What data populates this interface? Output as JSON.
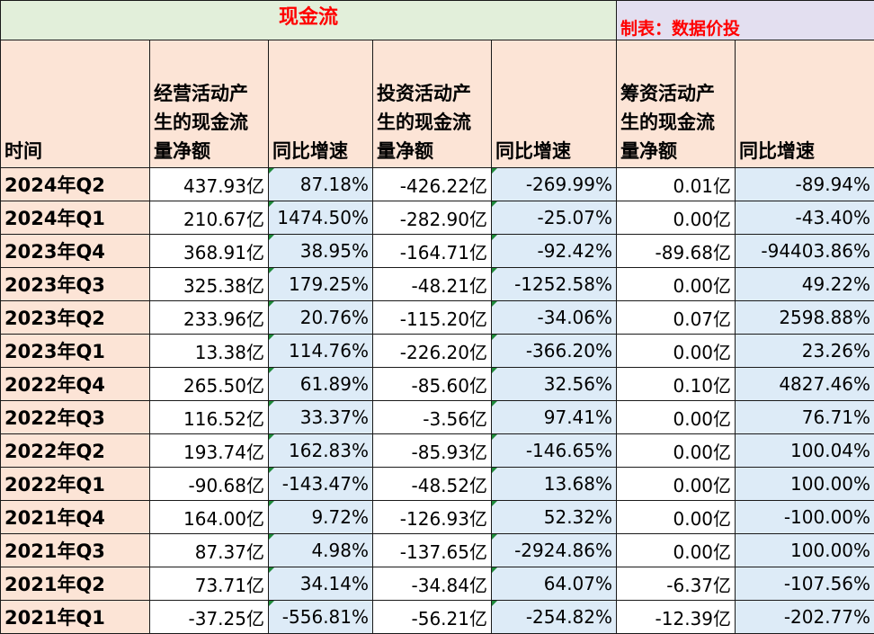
{
  "title": "现金流",
  "credit": "制表：数据价投",
  "headers": {
    "period": "时间",
    "operating": "经营活动产生的现金流量净额",
    "operating_yoy": "同比增速",
    "investing": "投资活动产生的现金流量净额",
    "investing_yoy": "同比增速",
    "financing": "筹资活动产生的现金流量净额",
    "financing_yoy": "同比增速"
  },
  "rows": [
    {
      "period": "2024年Q2",
      "op": "437.93亿",
      "op_yoy": "87.18%",
      "inv": "-426.22亿",
      "inv_yoy": "-269.99%",
      "fin": "0.01亿",
      "fin_yoy": "-89.94%"
    },
    {
      "period": "2024年Q1",
      "op": "210.67亿",
      "op_yoy": "1474.50%",
      "inv": "-282.90亿",
      "inv_yoy": "-25.07%",
      "fin": "0.00亿",
      "fin_yoy": "-43.40%"
    },
    {
      "period": "2023年Q4",
      "op": "368.91亿",
      "op_yoy": "38.95%",
      "inv": "-164.71亿",
      "inv_yoy": "-92.42%",
      "fin": "-89.68亿",
      "fin_yoy": "-94403.86%"
    },
    {
      "period": "2023年Q3",
      "op": "325.38亿",
      "op_yoy": "179.25%",
      "inv": "-48.21亿",
      "inv_yoy": "-1252.58%",
      "fin": "0.00亿",
      "fin_yoy": "49.22%"
    },
    {
      "period": "2023年Q2",
      "op": "233.96亿",
      "op_yoy": "20.76%",
      "inv": "-115.20亿",
      "inv_yoy": "-34.06%",
      "fin": "0.07亿",
      "fin_yoy": "2598.88%"
    },
    {
      "period": "2023年Q1",
      "op": "13.38亿",
      "op_yoy": "114.76%",
      "inv": "-226.20亿",
      "inv_yoy": "-366.20%",
      "fin": "0.00亿",
      "fin_yoy": "23.26%"
    },
    {
      "period": "2022年Q4",
      "op": "265.50亿",
      "op_yoy": "61.89%",
      "inv": "-85.60亿",
      "inv_yoy": "32.56%",
      "fin": "0.10亿",
      "fin_yoy": "4827.46%"
    },
    {
      "period": "2022年Q3",
      "op": "116.52亿",
      "op_yoy": "33.37%",
      "inv": "-3.56亿",
      "inv_yoy": "97.41%",
      "fin": "0.00亿",
      "fin_yoy": "76.71%"
    },
    {
      "period": "2022年Q2",
      "op": "193.74亿",
      "op_yoy": "162.83%",
      "inv": "-85.93亿",
      "inv_yoy": "-146.65%",
      "fin": "0.00亿",
      "fin_yoy": "100.04%"
    },
    {
      "period": "2022年Q1",
      "op": "-90.68亿",
      "op_yoy": "-143.47%",
      "inv": "-48.52亿",
      "inv_yoy": "13.68%",
      "fin": "0.00亿",
      "fin_yoy": "100.00%"
    },
    {
      "period": "2021年Q4",
      "op": "164.00亿",
      "op_yoy": "9.72%",
      "inv": "-126.93亿",
      "inv_yoy": "52.32%",
      "fin": "0.00亿",
      "fin_yoy": "-100.00%"
    },
    {
      "period": "2021年Q3",
      "op": "87.37亿",
      "op_yoy": "4.98%",
      "inv": "-137.65亿",
      "inv_yoy": "-2924.86%",
      "fin": "0.00亿",
      "fin_yoy": "100.00%"
    },
    {
      "period": "2021年Q2",
      "op": "73.71亿",
      "op_yoy": "34.14%",
      "inv": "-34.84亿",
      "inv_yoy": "64.07%",
      "fin": "-6.37亿",
      "fin_yoy": "-107.56%"
    },
    {
      "period": "2021年Q1",
      "op": "-37.25亿",
      "op_yoy": "-556.81%",
      "inv": "-56.21亿",
      "inv_yoy": "-254.82%",
      "fin": "-12.39亿",
      "fin_yoy": "-202.77%"
    }
  ],
  "colors": {
    "title_bg": "#e2efda",
    "title_text": "#ff0000",
    "credit_bg": "#e3dff0",
    "header_bg": "#fce4d6",
    "yoy_bg": "#ddebf7",
    "cell_flag": "#1e8a3a"
  }
}
